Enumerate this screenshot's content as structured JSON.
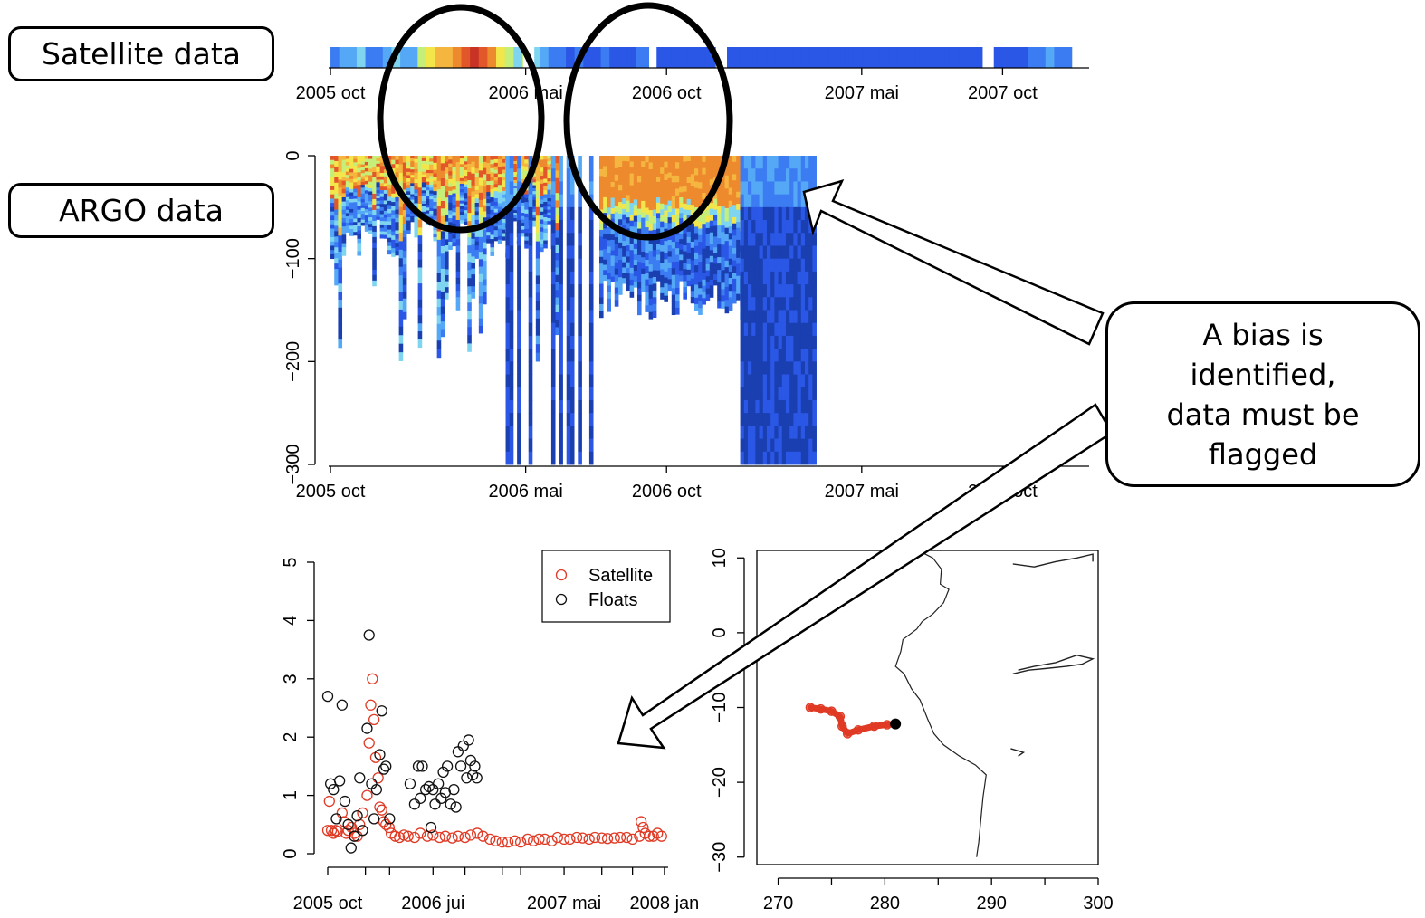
{
  "callouts": {
    "satellite": "Satellite data",
    "argo": "ARGO data",
    "bias_lines": [
      "A bias is",
      "identified,",
      "data must be",
      "flagged"
    ]
  },
  "colors": {
    "scale": [
      "#1a3fb0",
      "#2b57e6",
      "#3c7cf2",
      "#54a8f5",
      "#7fd5f0",
      "#c6ef7a",
      "#f2e64a",
      "#f5b640",
      "#ee8a2e",
      "#e2572a",
      "#c93326"
    ],
    "satellite_marker": "#e03a25",
    "floats_marker": "#111111",
    "track": "#e03a25"
  },
  "chart_data": [
    {
      "id": "satellite_strip",
      "type": "heatmap",
      "x_range": [
        "2005-09-29",
        "2008-01-03"
      ],
      "tick_labels": [
        "2005 oct",
        "2006 mai",
        "2006 oct",
        "2007 mai",
        "2007 oct"
      ],
      "tick_dates": [
        "2005-10-01",
        "2006-05-01",
        "2006-10-01",
        "2007-05-01",
        "2007-10-01"
      ],
      "strip_start": "2005-10-01",
      "strip_end": "2007-12-15",
      "values": [
        2,
        3,
        3,
        4,
        2,
        2,
        3,
        4,
        3,
        3,
        5,
        6,
        7,
        7,
        8,
        9,
        10,
        9,
        8,
        6,
        5,
        4,
        5,
        4,
        3,
        2,
        2,
        1,
        2,
        1,
        1,
        2,
        1,
        1,
        1,
        2,
        2,
        1,
        1,
        1,
        1,
        1,
        1,
        1,
        1,
        1,
        1,
        1,
        1,
        1,
        1,
        1,
        1,
        1,
        1,
        1,
        1,
        1,
        1,
        1,
        1,
        1,
        1,
        1,
        1,
        1,
        1,
        1,
        1,
        1,
        1,
        1,
        1,
        1,
        1,
        1,
        1,
        1,
        1,
        1,
        2,
        2,
        3,
        2,
        2
      ]
    },
    {
      "id": "argo_profiles",
      "type": "heatmap",
      "x_range": [
        "2005-09-29",
        "2008-01-03"
      ],
      "tick_labels": [
        "2005 oct",
        "2006 mai",
        "2006 oct",
        "2007 mai",
        "2007 oct"
      ],
      "tick_dates": [
        "2005-10-01",
        "2006-05-01",
        "2006-10-01",
        "2007-05-01",
        "2007-10-01"
      ],
      "ylim": [
        -300,
        0
      ],
      "y_ticks": [
        0,
        -100,
        -200,
        -300
      ],
      "y_tick_labels": [
        "0",
        "−100",
        "−200",
        "−300"
      ],
      "profiles": [
        {
          "start": "2005-10-01",
          "end": "2006-06-05",
          "bottom": -80,
          "surface": "mixed"
        },
        {
          "start": "2006-04-01",
          "end": "2006-07-10",
          "bottom": -300,
          "surface": "blue",
          "sparse": true
        },
        {
          "start": "2006-07-20",
          "end": "2007-03-10",
          "bottom": -140,
          "surface": "orange"
        },
        {
          "start": "2006-12-20",
          "end": "2007-03-10",
          "bottom": -300,
          "surface": "blue"
        }
      ]
    },
    {
      "id": "rmse_timeseries",
      "type": "scatter",
      "x_range": [
        "2005-10-01",
        "2008-01-10"
      ],
      "tick_labels": [
        "2005 oct",
        "2006 jui",
        "2007 mai",
        "2008 jan"
      ],
      "tick_dates": [
        "2005-10-01",
        "2006-06-15",
        "2007-05-01",
        "2008-01-01"
      ],
      "ylim": [
        0,
        5
      ],
      "y_ticks": [
        0,
        1,
        2,
        3,
        4,
        5
      ],
      "legend": {
        "position": "top-right",
        "entries": [
          "Satellite",
          "Floats"
        ]
      },
      "series": [
        {
          "name": "Satellite",
          "points": [
            [
              "2005-10-01",
              0.4
            ],
            [
              "2005-10-05",
              0.9
            ],
            [
              "2005-10-10",
              0.4
            ],
            [
              "2005-10-15",
              0.35
            ],
            [
              "2005-10-20",
              0.4
            ],
            [
              "2005-10-25",
              0.38
            ],
            [
              "2005-11-05",
              0.7
            ],
            [
              "2005-11-10",
              0.55
            ],
            [
              "2005-11-15",
              0.35
            ],
            [
              "2005-11-20",
              0.4
            ],
            [
              "2005-11-28",
              0.45
            ],
            [
              "2005-12-05",
              0.35
            ],
            [
              "2005-12-12",
              0.3
            ],
            [
              "2005-12-18",
              0.5
            ],
            [
              "2005-12-25",
              0.7
            ],
            [
              "2006-01-05",
              1.0
            ],
            [
              "2006-01-10",
              1.9
            ],
            [
              "2006-01-14",
              2.55
            ],
            [
              "2006-01-18",
              3.0
            ],
            [
              "2006-01-22",
              2.3
            ],
            [
              "2006-01-26",
              1.65
            ],
            [
              "2006-02-01",
              1.3
            ],
            [
              "2006-02-05",
              0.8
            ],
            [
              "2006-02-10",
              0.75
            ],
            [
              "2006-02-15",
              0.55
            ],
            [
              "2006-02-20",
              0.5
            ],
            [
              "2006-02-28",
              0.45
            ],
            [
              "2006-03-05",
              0.35
            ],
            [
              "2006-03-15",
              0.3
            ],
            [
              "2006-03-25",
              0.28
            ],
            [
              "2006-04-05",
              0.32
            ],
            [
              "2006-04-15",
              0.3
            ],
            [
              "2006-05-01",
              0.28
            ],
            [
              "2006-05-15",
              0.35
            ],
            [
              "2006-06-01",
              0.3
            ],
            [
              "2006-06-15",
              0.32
            ],
            [
              "2006-07-01",
              0.28
            ],
            [
              "2006-07-15",
              0.3
            ],
            [
              "2006-08-01",
              0.27
            ],
            [
              "2006-08-15",
              0.3
            ],
            [
              "2006-09-01",
              0.28
            ],
            [
              "2006-09-15",
              0.32
            ],
            [
              "2006-10-01",
              0.35
            ],
            [
              "2006-10-15",
              0.3
            ],
            [
              "2006-11-01",
              0.25
            ],
            [
              "2006-11-15",
              0.22
            ],
            [
              "2006-12-01",
              0.2
            ],
            [
              "2006-12-15",
              0.2
            ],
            [
              "2007-01-01",
              0.22
            ],
            [
              "2007-01-15",
              0.2
            ],
            [
              "2007-02-01",
              0.25
            ],
            [
              "2007-02-15",
              0.22
            ],
            [
              "2007-03-01",
              0.25
            ],
            [
              "2007-03-15",
              0.25
            ],
            [
              "2007-04-01",
              0.22
            ],
            [
              "2007-04-15",
              0.28
            ],
            [
              "2007-05-01",
              0.25
            ],
            [
              "2007-05-15",
              0.25
            ],
            [
              "2007-06-01",
              0.28
            ],
            [
              "2007-06-15",
              0.27
            ],
            [
              "2007-07-01",
              0.25
            ],
            [
              "2007-07-15",
              0.28
            ],
            [
              "2007-08-01",
              0.27
            ],
            [
              "2007-08-15",
              0.26
            ],
            [
              "2007-09-01",
              0.27
            ],
            [
              "2007-09-15",
              0.28
            ],
            [
              "2007-10-01",
              0.28
            ],
            [
              "2007-10-15",
              0.25
            ],
            [
              "2007-11-01",
              0.3
            ],
            [
              "2007-11-05",
              0.55
            ],
            [
              "2007-11-10",
              0.45
            ],
            [
              "2007-11-15",
              0.35
            ],
            [
              "2007-11-25",
              0.3
            ],
            [
              "2007-12-05",
              0.3
            ],
            [
              "2007-12-15",
              0.35
            ],
            [
              "2007-12-25",
              0.3
            ]
          ]
        },
        {
          "name": "Floats",
          "points": [
            [
              "2005-10-01",
              2.7
            ],
            [
              "2005-10-08",
              1.2
            ],
            [
              "2005-10-15",
              1.1
            ],
            [
              "2005-10-22",
              0.6
            ],
            [
              "2005-10-30",
              1.25
            ],
            [
              "2005-11-05",
              2.55
            ],
            [
              "2005-11-12",
              0.9
            ],
            [
              "2005-11-20",
              0.5
            ],
            [
              "2005-11-27",
              0.1
            ],
            [
              "2005-12-05",
              0.3
            ],
            [
              "2005-12-12",
              0.65
            ],
            [
              "2005-12-18",
              1.3
            ],
            [
              "2005-12-25",
              0.4
            ],
            [
              "2006-01-05",
              2.15
            ],
            [
              "2006-01-10",
              3.75
            ],
            [
              "2006-01-16",
              1.2
            ],
            [
              "2006-01-22",
              0.6
            ],
            [
              "2006-01-28",
              1.1
            ],
            [
              "2006-02-05",
              1.7
            ],
            [
              "2006-02-10",
              2.45
            ],
            [
              "2006-02-15",
              1.45
            ],
            [
              "2006-02-20",
              1.5
            ],
            [
              "2006-03-01",
              0.6
            ],
            [
              "2006-04-20",
              1.2
            ],
            [
              "2006-05-01",
              0.85
            ],
            [
              "2006-05-10",
              1.5
            ],
            [
              "2006-05-15",
              0.95
            ],
            [
              "2006-05-20",
              1.5
            ],
            [
              "2006-05-28",
              1.1
            ],
            [
              "2006-06-05",
              1.15
            ],
            [
              "2006-06-10",
              0.45
            ],
            [
              "2006-06-15",
              1.1
            ],
            [
              "2006-06-20",
              0.85
            ],
            [
              "2006-06-28",
              1.2
            ],
            [
              "2006-07-05",
              0.95
            ],
            [
              "2006-07-10",
              1.4
            ],
            [
              "2006-07-15",
              1.05
            ],
            [
              "2006-07-20",
              1.5
            ],
            [
              "2006-07-28",
              0.85
            ],
            [
              "2006-08-05",
              1.1
            ],
            [
              "2006-08-10",
              0.8
            ],
            [
              "2006-08-15",
              1.75
            ],
            [
              "2006-08-22",
              1.5
            ],
            [
              "2006-08-28",
              1.85
            ],
            [
              "2006-09-05",
              1.3
            ],
            [
              "2006-09-10",
              1.95
            ],
            [
              "2006-09-15",
              1.6
            ],
            [
              "2006-09-20",
              1.35
            ],
            [
              "2006-09-25",
              1.5
            ],
            [
              "2006-09-30",
              1.3
            ]
          ]
        }
      ]
    },
    {
      "id": "track_map",
      "type": "line",
      "xlim": [
        268,
        300
      ],
      "ylim": [
        -31,
        11
      ],
      "x_ticks": [
        270,
        280,
        290,
        300
      ],
      "y_ticks": [
        10,
        0,
        -10,
        -20,
        -30
      ],
      "y_tick_labels": [
        "10",
        "0",
        "−10",
        "−20",
        "−30"
      ],
      "coastline": [
        [
          283.4,
          10.8
        ],
        [
          284.5,
          10.0
        ],
        [
          285.3,
          8.5
        ],
        [
          285.2,
          6.5
        ],
        [
          286.0,
          5.8
        ],
        [
          285.5,
          4.0
        ],
        [
          284.5,
          2.5
        ],
        [
          283.5,
          1.5
        ],
        [
          283.0,
          0.5
        ],
        [
          281.7,
          -0.9
        ],
        [
          281.5,
          -2.5
        ],
        [
          281.0,
          -4.5
        ],
        [
          281.8,
          -5.5
        ],
        [
          282.5,
          -7.5
        ],
        [
          283.3,
          -9.0
        ],
        [
          284.0,
          -11.5
        ],
        [
          284.6,
          -13.5
        ],
        [
          285.5,
          -15.0
        ],
        [
          287.0,
          -16.5
        ],
        [
          288.5,
          -17.7
        ],
        [
          289.5,
          -19.0
        ],
        [
          289.2,
          -22.0
        ],
        [
          289.0,
          -25.0
        ],
        [
          288.8,
          -28.0
        ],
        [
          288.6,
          -30.0
        ]
      ],
      "islands": [
        [
          [
            292,
            -5.5
          ],
          [
            293.5,
            -5.0
          ],
          [
            295,
            -4.8
          ],
          [
            297,
            -4.5
          ],
          [
            298.5,
            -4.2
          ],
          [
            299.5,
            -3.5
          ],
          [
            298,
            -3.0
          ],
          [
            297,
            -3.5
          ],
          [
            296,
            -4.0
          ],
          [
            294,
            -4.5
          ],
          [
            292.5,
            -5.0
          ]
        ],
        [
          [
            292,
            9.2
          ],
          [
            294,
            8.8
          ],
          [
            296,
            9.5
          ],
          [
            298,
            10.0
          ],
          [
            299.5,
            10.5
          ],
          [
            299.5,
            9.5
          ]
        ],
        [
          [
            291.8,
            -15.5
          ],
          [
            293,
            -16.0
          ],
          [
            292.5,
            -16.5
          ]
        ]
      ],
      "float_track": [
        [
          273.0,
          -10.0
        ],
        [
          274.0,
          -10.2
        ],
        [
          275.0,
          -10.5
        ],
        [
          275.8,
          -11.2
        ],
        [
          276.0,
          -12.5
        ],
        [
          276.5,
          -13.5
        ],
        [
          277.5,
          -13.0
        ],
        [
          279.0,
          -12.5
        ],
        [
          280.2,
          -12.3
        ],
        [
          281.0,
          -12.2
        ]
      ],
      "float_position": [
        281.0,
        -12.2
      ]
    }
  ]
}
